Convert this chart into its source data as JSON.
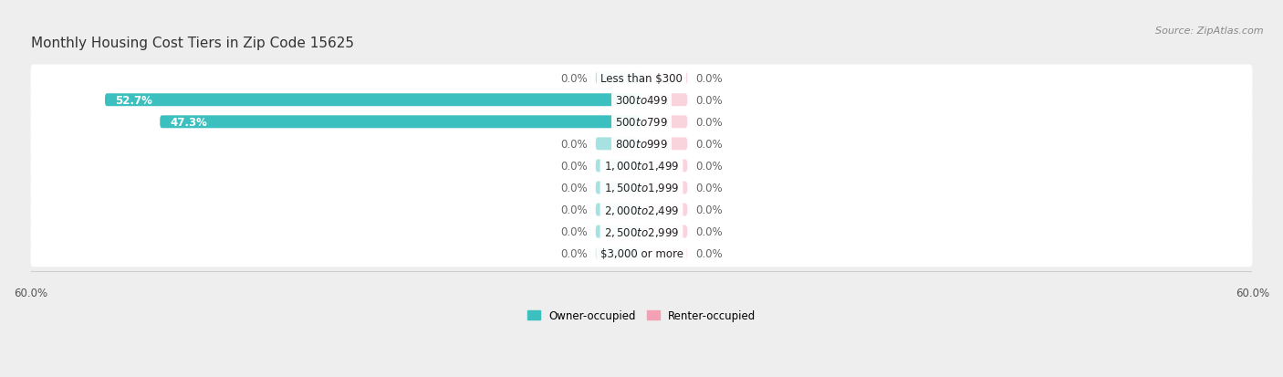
{
  "title": "Monthly Housing Cost Tiers in Zip Code 15625",
  "source": "Source: ZipAtlas.com",
  "categories": [
    "Less than $300",
    "$300 to $499",
    "$500 to $799",
    "$800 to $999",
    "$1,000 to $1,499",
    "$1,500 to $1,999",
    "$2,000 to $2,499",
    "$2,500 to $2,999",
    "$3,000 or more"
  ],
  "owner_values": [
    0.0,
    52.7,
    47.3,
    0.0,
    0.0,
    0.0,
    0.0,
    0.0,
    0.0
  ],
  "renter_values": [
    0.0,
    0.0,
    0.0,
    0.0,
    0.0,
    0.0,
    0.0,
    0.0,
    0.0
  ],
  "owner_color": "#3BBFBF",
  "renter_color": "#F4A0B5",
  "owner_label": "Owner-occupied",
  "renter_label": "Renter-occupied",
  "axis_limit": 60.0,
  "stub_size": 4.5,
  "background_color": "#eeeeee",
  "row_bg_color": "#ffffff",
  "title_fontsize": 11,
  "source_fontsize": 8,
  "label_fontsize": 8.5,
  "tick_fontsize": 8.5,
  "cat_fontsize": 8.5
}
